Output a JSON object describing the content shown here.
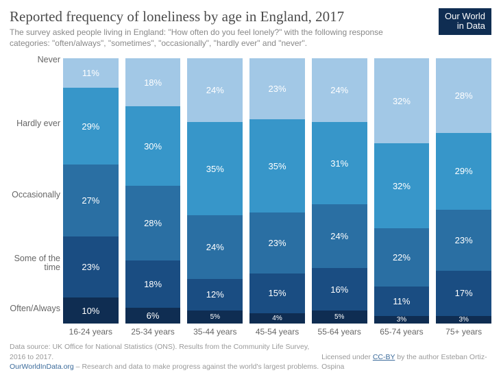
{
  "title": "Reported frequency of loneliness by age in England, 2017",
  "subtitle": "The survey asked people living in England: \"How often do you feel lonely?\" with the following response categories: \"often/always\", \"sometimes\", \"occasionally\", \"hardly ever\" and \"never\".",
  "logo_line1": "Our World",
  "logo_line2": "in Data",
  "chart": {
    "type": "stacked-bar",
    "categories": [
      "16-24 years",
      "25-34 years",
      "35-44 years",
      "45-54 years",
      "55-64 years",
      "65-74 years",
      "75+ years"
    ],
    "series": [
      {
        "name": "Often/Always",
        "color": "#0f2d52",
        "values": [
          10,
          6,
          5,
          4,
          5,
          3,
          3
        ]
      },
      {
        "name": "Some of the time",
        "color": "#1a4d82",
        "values": [
          23,
          18,
          12,
          15,
          16,
          11,
          17
        ]
      },
      {
        "name": "Occasionally",
        "color": "#2a6fa3",
        "values": [
          27,
          28,
          24,
          23,
          24,
          22,
          23
        ]
      },
      {
        "name": "Hardly ever",
        "color": "#3796c9",
        "values": [
          29,
          30,
          35,
          35,
          31,
          32,
          29
        ]
      },
      {
        "name": "Never",
        "color": "#a2c8e6",
        "values": [
          11,
          18,
          24,
          23,
          24,
          32,
          28
        ]
      }
    ],
    "y_label_positions_pct": [
      5,
      21.5,
      46,
      71.5,
      94.5
    ],
    "background_color": "#ffffff",
    "label_color": "#666666",
    "value_suffix": "%"
  },
  "footer": {
    "source_prefix": "Data source: UK Office for National Statistics (ONS). Results from the Community Life Survey, 2016 to 2017.",
    "site_link": "OurWorldInData.org",
    "site_tag": " – Research and data to make progress against the world's largest problems.",
    "license_prefix": "Licensed under ",
    "license_link": "CC-BY",
    "license_suffix": " by the author Esteban Ortiz-Ospina"
  }
}
